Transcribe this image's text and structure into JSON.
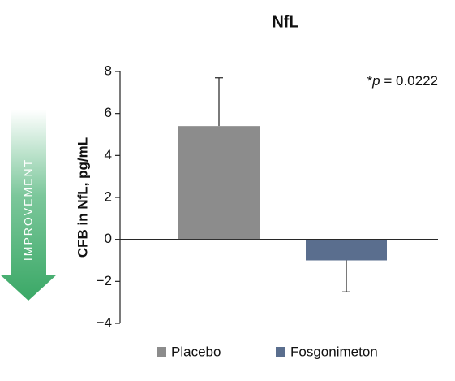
{
  "chart_data": {
    "type": "bar",
    "title": "NfL",
    "y_label": "CFB in NfL, pg/mL",
    "annotation": [
      "*",
      "p",
      " = 0.0222"
    ],
    "arrow_label": "IMPROVEMENT",
    "categories": [
      "Placebo",
      "Fosgonimeton"
    ],
    "values": [
      5.4,
      -1.0
    ],
    "errors": [
      2.3,
      1.5
    ],
    "colors": [
      "#8c8c8c",
      "#5a6e8e"
    ],
    "ylim": [
      -4,
      8
    ],
    "yticks": [
      {
        "value": -4,
        "label": "−4"
      },
      {
        "value": -2,
        "label": "−2"
      },
      0,
      2,
      4,
      6,
      8
    ]
  }
}
